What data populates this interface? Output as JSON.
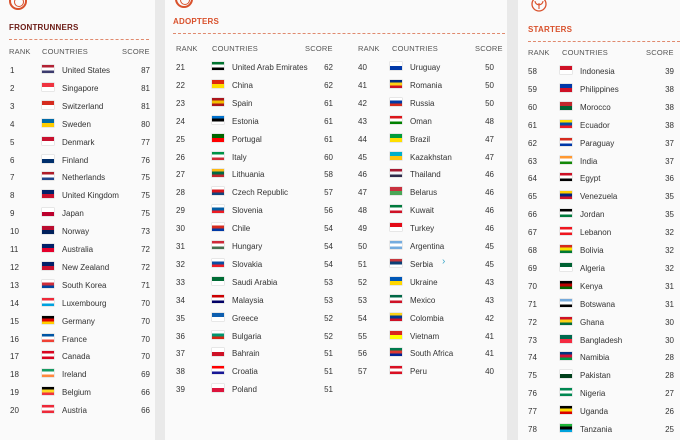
{
  "headers": {
    "rank": "RANK",
    "countries": "COUNTRIES",
    "score": "SCORE"
  },
  "tiers": {
    "frontrunners": {
      "title": "FRONTRUNNERS",
      "rows": [
        {
          "rank": "1",
          "name": "United States",
          "score": "87",
          "flag": [
            "#b22234",
            "#ffffff",
            "#3c3b6e"
          ]
        },
        {
          "rank": "2",
          "name": "Singapore",
          "score": "81",
          "flag": [
            "#ef3340",
            "#ffffff"
          ]
        },
        {
          "rank": "3",
          "name": "Switzerland",
          "score": "81",
          "flag": [
            "#d52b1e",
            "#ffffff"
          ]
        },
        {
          "rank": "4",
          "name": "Sweden",
          "score": "80",
          "flag": [
            "#006aa7",
            "#fecc00"
          ]
        },
        {
          "rank": "5",
          "name": "Denmark",
          "score": "77",
          "flag": [
            "#c8102e",
            "#ffffff"
          ]
        },
        {
          "rank": "6",
          "name": "Finland",
          "score": "76",
          "flag": [
            "#ffffff",
            "#002f6c"
          ]
        },
        {
          "rank": "7",
          "name": "Netherlands",
          "score": "75",
          "flag": [
            "#ae1c28",
            "#ffffff",
            "#21468b"
          ]
        },
        {
          "rank": "8",
          "name": "United Kingdom",
          "score": "75",
          "flag": [
            "#012169",
            "#c8102e"
          ]
        },
        {
          "rank": "9",
          "name": "Japan",
          "score": "75",
          "flag": [
            "#ffffff",
            "#bc002d"
          ]
        },
        {
          "rank": "10",
          "name": "Norway",
          "score": "73",
          "flag": [
            "#ba0c2f",
            "#00205b"
          ]
        },
        {
          "rank": "11",
          "name": "Australia",
          "score": "72",
          "flag": [
            "#012169",
            "#e4002b"
          ]
        },
        {
          "rank": "12",
          "name": "New Zealand",
          "score": "72",
          "flag": [
            "#012169",
            "#c8102e"
          ]
        },
        {
          "rank": "13",
          "name": "South Korea",
          "score": "71",
          "flag": [
            "#ffffff",
            "#cd2e3a",
            "#0047a0"
          ]
        },
        {
          "rank": "14",
          "name": "Luxembourg",
          "score": "70",
          "flag": [
            "#ed2939",
            "#ffffff",
            "#00a1de"
          ]
        },
        {
          "rank": "15",
          "name": "Germany",
          "score": "70",
          "flag": [
            "#000000",
            "#dd0000",
            "#ffce00"
          ]
        },
        {
          "rank": "16",
          "name": "France",
          "score": "70",
          "flag": [
            "#0055a4",
            "#ffffff",
            "#ef4135"
          ]
        },
        {
          "rank": "17",
          "name": "Canada",
          "score": "70",
          "flag": [
            "#d80621",
            "#ffffff",
            "#d80621"
          ]
        },
        {
          "rank": "18",
          "name": "Ireland",
          "score": "69",
          "flag": [
            "#169b62",
            "#ffffff",
            "#ff883e"
          ]
        },
        {
          "rank": "19",
          "name": "Belgium",
          "score": "66",
          "flag": [
            "#000000",
            "#fdda24",
            "#ef3340"
          ]
        },
        {
          "rank": "20",
          "name": "Austria",
          "score": "66",
          "flag": [
            "#ed2939",
            "#ffffff",
            "#ed2939"
          ]
        }
      ]
    },
    "adopters": {
      "title": "ADOPTERS",
      "rows": [
        {
          "rank": "21",
          "name": "United Arab Emirates",
          "score": "62",
          "flag": [
            "#00732f",
            "#ffffff",
            "#000000"
          ]
        },
        {
          "rank": "22",
          "name": "China",
          "score": "62",
          "flag": [
            "#de2910",
            "#ffde00"
          ]
        },
        {
          "rank": "23",
          "name": "Spain",
          "score": "61",
          "flag": [
            "#aa151b",
            "#f1bf00",
            "#aa151b"
          ]
        },
        {
          "rank": "24",
          "name": "Estonia",
          "score": "61",
          "flag": [
            "#0072ce",
            "#000000",
            "#ffffff"
          ]
        },
        {
          "rank": "25",
          "name": "Portugal",
          "score": "61",
          "flag": [
            "#006600",
            "#ff0000"
          ]
        },
        {
          "rank": "26",
          "name": "Italy",
          "score": "60",
          "flag": [
            "#009246",
            "#ffffff",
            "#ce2b37"
          ]
        },
        {
          "rank": "27",
          "name": "Lithuania",
          "score": "58",
          "flag": [
            "#fdb913",
            "#006a44",
            "#c1272d"
          ]
        },
        {
          "rank": "28",
          "name": "Czech Republic",
          "score": "57",
          "flag": [
            "#ffffff",
            "#d7141a",
            "#11457e"
          ]
        },
        {
          "rank": "29",
          "name": "Slovenia",
          "score": "56",
          "flag": [
            "#ffffff",
            "#005da4",
            "#ed1c24"
          ]
        },
        {
          "rank": "30",
          "name": "Chile",
          "score": "54",
          "flag": [
            "#ffffff",
            "#d52b1e",
            "#0039a6"
          ]
        },
        {
          "rank": "31",
          "name": "Hungary",
          "score": "54",
          "flag": [
            "#ce2939",
            "#ffffff",
            "#477050"
          ]
        },
        {
          "rank": "32",
          "name": "Slovakia",
          "score": "54",
          "flag": [
            "#ffffff",
            "#0b4ea2",
            "#ee1c25"
          ]
        },
        {
          "rank": "33",
          "name": "Saudi Arabia",
          "score": "53",
          "flag": [
            "#006c35",
            "#ffffff"
          ]
        },
        {
          "rank": "34",
          "name": "Malaysia",
          "score": "53",
          "flag": [
            "#cc0001",
            "#ffffff",
            "#010066"
          ]
        },
        {
          "rank": "35",
          "name": "Greece",
          "score": "52",
          "flag": [
            "#0d5eaf",
            "#ffffff"
          ]
        },
        {
          "rank": "36",
          "name": "Bulgaria",
          "score": "52",
          "flag": [
            "#ffffff",
            "#00966e",
            "#d62612"
          ]
        },
        {
          "rank": "37",
          "name": "Bahrain",
          "score": "51",
          "flag": [
            "#ffffff",
            "#ce1126"
          ]
        },
        {
          "rank": "38",
          "name": "Croatia",
          "score": "51",
          "flag": [
            "#ff0000",
            "#ffffff",
            "#171796"
          ]
        },
        {
          "rank": "39",
          "name": "Poland",
          "score": "51",
          "flag": [
            "#ffffff",
            "#dc143c"
          ]
        },
        {
          "rank": "40",
          "name": "Uruguay",
          "score": "50",
          "flag": [
            "#ffffff",
            "#0038a8"
          ]
        },
        {
          "rank": "41",
          "name": "Romania",
          "score": "50",
          "flag": [
            "#002b7f",
            "#fcd116",
            "#ce1126"
          ]
        },
        {
          "rank": "42",
          "name": "Russia",
          "score": "50",
          "flag": [
            "#ffffff",
            "#0039a6",
            "#d52b1e"
          ]
        },
        {
          "rank": "43",
          "name": "Oman",
          "score": "48",
          "flag": [
            "#db161b",
            "#ffffff",
            "#008000"
          ]
        },
        {
          "rank": "44",
          "name": "Brazil",
          "score": "47",
          "flag": [
            "#009c3b",
            "#ffdf00"
          ]
        },
        {
          "rank": "45",
          "name": "Kazakhstan",
          "score": "47",
          "flag": [
            "#00afca",
            "#fec50c"
          ]
        },
        {
          "rank": "46",
          "name": "Thailand",
          "score": "46",
          "flag": [
            "#a51931",
            "#f4f5f8",
            "#2d2a4a"
          ]
        },
        {
          "rank": "47",
          "name": "Belarus",
          "score": "46",
          "flag": [
            "#c8313e",
            "#4aa657"
          ]
        },
        {
          "rank": "48",
          "name": "Kuwait",
          "score": "46",
          "flag": [
            "#007a3d",
            "#ffffff",
            "#ce1126"
          ]
        },
        {
          "rank": "49",
          "name": "Turkey",
          "score": "46",
          "flag": [
            "#e30a17",
            "#ffffff"
          ]
        },
        {
          "rank": "50",
          "name": "Argentina",
          "score": "45",
          "flag": [
            "#74acdf",
            "#ffffff",
            "#74acdf"
          ]
        },
        {
          "rank": "51",
          "name": "Serbia",
          "score": "45",
          "flag": [
            "#c6363c",
            "#0c4076",
            "#ffffff"
          ]
        },
        {
          "rank": "52",
          "name": "Ukraine",
          "score": "43",
          "flag": [
            "#0057b7",
            "#ffd700"
          ]
        },
        {
          "rank": "53",
          "name": "Mexico",
          "score": "43",
          "flag": [
            "#006847",
            "#ffffff",
            "#ce1126"
          ]
        },
        {
          "rank": "54",
          "name": "Colombia",
          "score": "42",
          "flag": [
            "#fcd116",
            "#003893",
            "#ce1126"
          ]
        },
        {
          "rank": "55",
          "name": "Vietnam",
          "score": "41",
          "flag": [
            "#da251d",
            "#ffff00"
          ]
        },
        {
          "rank": "56",
          "name": "South Africa",
          "score": "41",
          "flag": [
            "#007a4d",
            "#de3831",
            "#002395"
          ]
        },
        {
          "rank": "57",
          "name": "Peru",
          "score": "40",
          "flag": [
            "#d91023",
            "#ffffff",
            "#d91023"
          ]
        }
      ]
    },
    "starters": {
      "title": "STARTERS",
      "rows": [
        {
          "rank": "58",
          "name": "Indonesia",
          "score": "39",
          "flag": [
            "#ce1126",
            "#ffffff"
          ]
        },
        {
          "rank": "59",
          "name": "Philippines",
          "score": "38",
          "flag": [
            "#0038a8",
            "#ce1126"
          ]
        },
        {
          "rank": "60",
          "name": "Morocco",
          "score": "38",
          "flag": [
            "#c1272d",
            "#006233"
          ]
        },
        {
          "rank": "61",
          "name": "Ecuador",
          "score": "38",
          "flag": [
            "#ffdd00",
            "#034ea2",
            "#ed1c24"
          ]
        },
        {
          "rank": "62",
          "name": "Paraguay",
          "score": "37",
          "flag": [
            "#d52b1e",
            "#ffffff",
            "#0038a8"
          ]
        },
        {
          "rank": "63",
          "name": "India",
          "score": "37",
          "flag": [
            "#ff9933",
            "#ffffff",
            "#138808"
          ]
        },
        {
          "rank": "64",
          "name": "Egypt",
          "score": "36",
          "flag": [
            "#ce1126",
            "#ffffff",
            "#000000"
          ]
        },
        {
          "rank": "65",
          "name": "Venezuela",
          "score": "35",
          "flag": [
            "#ffcc00",
            "#00247d",
            "#cf142b"
          ]
        },
        {
          "rank": "66",
          "name": "Jordan",
          "score": "35",
          "flag": [
            "#000000",
            "#ffffff",
            "#007a3d"
          ]
        },
        {
          "rank": "67",
          "name": "Lebanon",
          "score": "32",
          "flag": [
            "#ee161f",
            "#ffffff",
            "#ee161f"
          ]
        },
        {
          "rank": "68",
          "name": "Bolivia",
          "score": "32",
          "flag": [
            "#d52b1e",
            "#f9e300",
            "#007934"
          ]
        },
        {
          "rank": "69",
          "name": "Algeria",
          "score": "32",
          "flag": [
            "#006233",
            "#ffffff"
          ]
        },
        {
          "rank": "70",
          "name": "Kenya",
          "score": "31",
          "flag": [
            "#000000",
            "#bb0000",
            "#006600"
          ]
        },
        {
          "rank": "71",
          "name": "Botswana",
          "score": "31",
          "flag": [
            "#75aadb",
            "#ffffff",
            "#000000"
          ]
        },
        {
          "rank": "72",
          "name": "Ghana",
          "score": "30",
          "flag": [
            "#ce1126",
            "#fcd116",
            "#006b3f"
          ]
        },
        {
          "rank": "73",
          "name": "Bangladesh",
          "score": "30",
          "flag": [
            "#006a4e",
            "#f42a41"
          ]
        },
        {
          "rank": "74",
          "name": "Namibia",
          "score": "28",
          "flag": [
            "#003580",
            "#d21034",
            "#009543"
          ]
        },
        {
          "rank": "75",
          "name": "Pakistan",
          "score": "28",
          "flag": [
            "#ffffff",
            "#01411c"
          ]
        },
        {
          "rank": "76",
          "name": "Nigeria",
          "score": "27",
          "flag": [
            "#008751",
            "#ffffff",
            "#008751"
          ]
        },
        {
          "rank": "77",
          "name": "Uganda",
          "score": "26",
          "flag": [
            "#000000",
            "#fcdc04",
            "#d90000"
          ]
        },
        {
          "rank": "78",
          "name": "Tanzania",
          "score": "25",
          "flag": [
            "#1eb53a",
            "#000000",
            "#00a3dd"
          ]
        }
      ]
    }
  },
  "colors": {
    "accent": "#d9512c",
    "text": "#333333",
    "rule": "#e08a6e",
    "link_chevron": "#3aa6c9"
  }
}
